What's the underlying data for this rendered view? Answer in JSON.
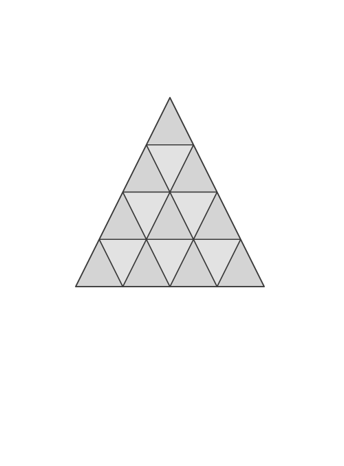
{
  "diagram": {
    "type": "triangular-grid",
    "rows": 4,
    "colors": {
      "upward_fill": "#d4d4d4",
      "downward_fill": "#e2e2e2",
      "stroke": "#3a3a3a",
      "background": "#ffffff"
    }
  }
}
